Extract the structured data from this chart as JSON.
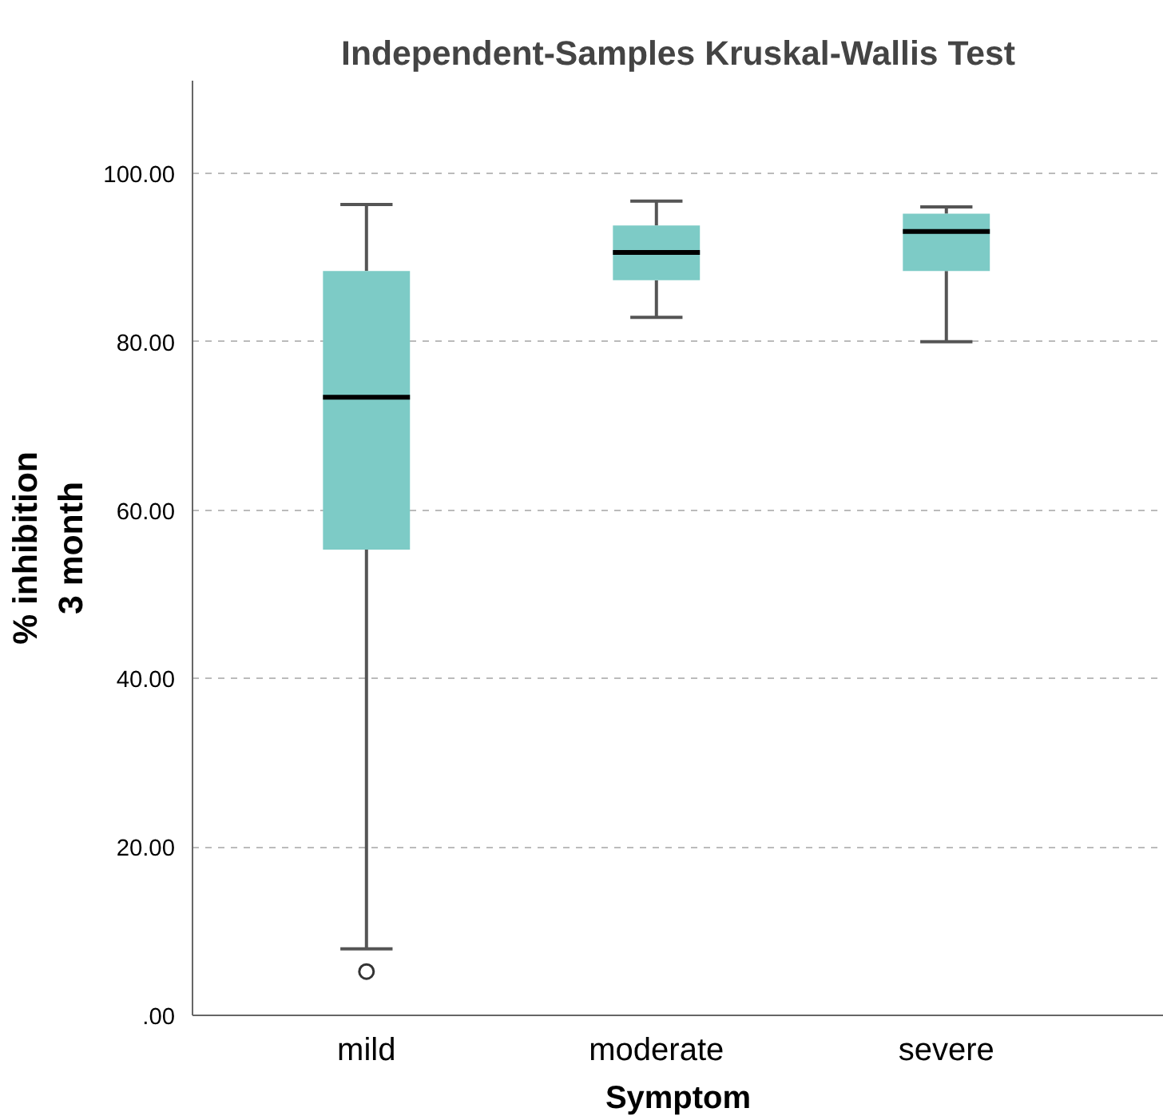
{
  "chart_data": {
    "type": "box",
    "title": "Independent-Samples Kruskal-Wallis Test",
    "xlabel": "Symptom",
    "ylabel": "% inhibition\n3 month",
    "categories": [
      "mild",
      "moderate",
      "severe"
    ],
    "boxes": [
      {
        "low": 7.9,
        "q1": 55.3,
        "median": 73.4,
        "q3": 88.4,
        "high": 96.3,
        "outliers": [
          5.2
        ]
      },
      {
        "low": 82.9,
        "q1": 87.3,
        "median": 90.6,
        "q3": 93.8,
        "high": 96.7
      },
      {
        "low": 80.0,
        "q1": 88.4,
        "median": 93.1,
        "q3": 95.2,
        "high": 96.0
      }
    ],
    "color": "#7dcbc6",
    "ylim": [
      0,
      111
    ],
    "yticks": [
      {
        "value": 0,
        "label": ".00"
      },
      {
        "value": 20,
        "label": "20.00"
      },
      {
        "value": 40,
        "label": "40.00"
      },
      {
        "value": 60,
        "label": "60.00"
      },
      {
        "value": 80,
        "label": "80.00"
      },
      {
        "value": 100,
        "label": "100.00"
      }
    ],
    "grid": "y"
  }
}
